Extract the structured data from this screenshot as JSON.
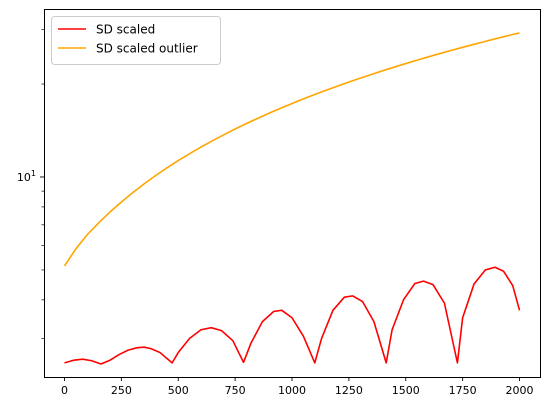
{
  "chart_data": {
    "type": "line",
    "title": "",
    "xlabel": "",
    "ylabel": "",
    "xlim": [
      -90,
      2090
    ],
    "ylim": [
      2.25,
      35
    ],
    "yscale": "log",
    "grid": false,
    "legend_position": "top-left",
    "x_ticks": [
      0,
      250,
      500,
      750,
      1000,
      1250,
      1500,
      1750,
      2000
    ],
    "x_tick_labels": [
      "0",
      "250",
      "500",
      "750",
      "1000",
      "1250",
      "1500",
      "1750",
      "2000"
    ],
    "y_major_ticks": [
      10
    ],
    "y_major_tick_labels": [
      "10^1"
    ],
    "y_minor_ticks": [
      3,
      4,
      5,
      6,
      7,
      8,
      9,
      20,
      30
    ],
    "series": [
      {
        "name": "SD scaled",
        "color": "#ff0000",
        "x": [
          0,
          40,
          80,
          120,
          160,
          200,
          240,
          280,
          320,
          350,
          380,
          420,
          473,
          500,
          550,
          600,
          645,
          690,
          740,
          787,
          820,
          870,
          920,
          955,
          1000,
          1050,
          1100,
          1130,
          1180,
          1230,
          1267,
          1310,
          1360,
          1414,
          1440,
          1490,
          1540,
          1578,
          1620,
          1670,
          1727,
          1750,
          1800,
          1850,
          1892,
          1930,
          1970,
          2000
        ],
        "y": [
          2.5,
          2.55,
          2.57,
          2.54,
          2.48,
          2.55,
          2.66,
          2.75,
          2.8,
          2.81,
          2.78,
          2.7,
          2.5,
          2.7,
          3.0,
          3.2,
          3.25,
          3.18,
          2.95,
          2.51,
          2.9,
          3.4,
          3.67,
          3.7,
          3.5,
          3.05,
          2.5,
          3.0,
          3.7,
          4.08,
          4.12,
          3.95,
          3.4,
          2.5,
          3.2,
          4.0,
          4.52,
          4.6,
          4.48,
          3.9,
          2.5,
          3.5,
          4.5,
          5.0,
          5.1,
          4.95,
          4.45,
          3.7
        ]
      },
      {
        "name": "SD scaled outlier",
        "color": "#ffa500",
        "x": [
          0,
          50,
          100,
          150,
          200,
          250,
          300,
          350,
          400,
          450,
          500,
          550,
          600,
          650,
          700,
          750,
          800,
          850,
          900,
          950,
          1000,
          1050,
          1100,
          1150,
          1200,
          1250,
          1300,
          1350,
          1400,
          1450,
          1500,
          1550,
          1600,
          1650,
          1700,
          1750,
          1800,
          1850,
          1900,
          1950,
          2000
        ],
        "y": [
          5.15,
          5.85,
          6.5,
          7.1,
          7.7,
          8.3,
          8.9,
          9.5,
          10.1,
          10.7,
          11.3,
          11.9,
          12.5,
          13.1,
          13.7,
          14.3,
          14.9,
          15.5,
          16.1,
          16.7,
          17.3,
          17.9,
          18.5,
          19.1,
          19.7,
          20.3,
          20.9,
          21.5,
          22.1,
          22.7,
          23.3,
          23.9,
          24.5,
          25.1,
          25.7,
          26.3,
          26.9,
          27.5,
          28.1,
          28.7,
          29.3
        ]
      }
    ]
  }
}
